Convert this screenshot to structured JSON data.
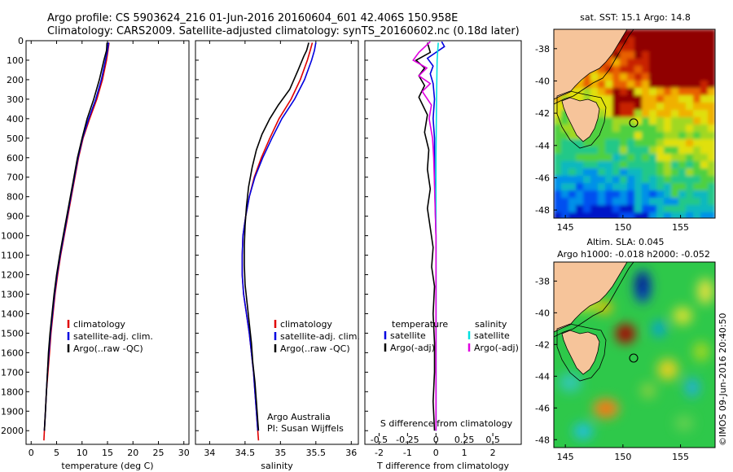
{
  "header": {
    "line1": "Argo profile: CS 5903624_216 01-Jun-2016 20160604_601 42.406S 150.958E",
    "line2": "Climatology: CARS2009. Satellite-adjusted climatology: synTS_20160602.nc (0.18d later)"
  },
  "colors": {
    "climatology": "#e00000",
    "satellite": "#0000e0",
    "argo": "#000000",
    "sat_salinity": "#00e0e0",
    "argo_salinity": "#e000e0",
    "land": "#f6c49a"
  },
  "chart_data": [
    {
      "type": "line",
      "name": "temperature-profile",
      "xlabel": "temperature (deg C)",
      "xlim": [
        -1,
        31
      ],
      "ylim": [
        0,
        2070
      ],
      "yinvert": true,
      "xticks": [
        "0",
        "5",
        "10",
        "15",
        "20",
        "25",
        "30"
      ],
      "yticks": [
        "0",
        "100",
        "200",
        "300",
        "400",
        "500",
        "600",
        "700",
        "800",
        "900",
        "1000",
        "1100",
        "1200",
        "1300",
        "1400",
        "1500",
        "1600",
        "1700",
        "1800",
        "1900",
        "2000"
      ],
      "series": [
        {
          "name": "climatology",
          "color": "#e00000",
          "points": [
            [
              15.3,
              10
            ],
            [
              15.1,
              50
            ],
            [
              14.8,
              100
            ],
            [
              14.0,
              200
            ],
            [
              12.9,
              300
            ],
            [
              11.5,
              400
            ],
            [
              10.2,
              500
            ],
            [
              9.3,
              600
            ],
            [
              8.6,
              700
            ],
            [
              7.9,
              800
            ],
            [
              7.2,
              900
            ],
            [
              6.5,
              1000
            ],
            [
              5.8,
              1100
            ],
            [
              5.2,
              1200
            ],
            [
              4.7,
              1300
            ],
            [
              4.3,
              1400
            ],
            [
              3.9,
              1500
            ],
            [
              3.6,
              1600
            ],
            [
              3.3,
              1700
            ],
            [
              3.0,
              1800
            ],
            [
              2.8,
              1900
            ],
            [
              2.6,
              2000
            ],
            [
              2.5,
              2050
            ]
          ]
        },
        {
          "name": "satellite-adj. clim.",
          "color": "#0000e0",
          "points": [
            [
              15.2,
              10
            ],
            [
              15.0,
              50
            ],
            [
              14.6,
              100
            ],
            [
              13.8,
              200
            ],
            [
              12.7,
              300
            ],
            [
              11.3,
              400
            ],
            [
              10.1,
              500
            ],
            [
              9.2,
              600
            ],
            [
              8.5,
              700
            ],
            [
              7.8,
              800
            ],
            [
              7.1,
              900
            ],
            [
              6.4,
              1000
            ],
            [
              5.7,
              1100
            ],
            [
              5.1,
              1200
            ],
            [
              4.6,
              1300
            ],
            [
              4.2,
              1400
            ],
            [
              3.8,
              1500
            ],
            [
              3.5,
              1600
            ],
            [
              3.2,
              1700
            ],
            [
              3.0,
              1800
            ],
            [
              2.8,
              1900
            ],
            [
              2.6,
              2000
            ]
          ]
        },
        {
          "name": "Argo(..raw -QC)",
          "color": "#000000",
          "points": [
            [
              14.9,
              10
            ],
            [
              14.8,
              50
            ],
            [
              14.3,
              100
            ],
            [
              13.4,
              200
            ],
            [
              12.3,
              300
            ],
            [
              11.0,
              400
            ],
            [
              10.0,
              500
            ],
            [
              9.1,
              600
            ],
            [
              8.4,
              700
            ],
            [
              7.7,
              800
            ],
            [
              7.0,
              900
            ],
            [
              6.3,
              1000
            ],
            [
              5.6,
              1100
            ],
            [
              5.0,
              1200
            ],
            [
              4.5,
              1300
            ],
            [
              4.1,
              1400
            ],
            [
              3.7,
              1500
            ],
            [
              3.4,
              1600
            ],
            [
              3.2,
              1700
            ],
            [
              3.0,
              1800
            ],
            [
              2.8,
              1900
            ],
            [
              2.6,
              2000
            ]
          ]
        }
      ],
      "legend": [
        "climatology",
        "satellite-adj. clim.",
        "Argo(..raw -QC)"
      ],
      "legend_position": "lower-right"
    },
    {
      "type": "line",
      "name": "salinity-profile",
      "xlabel": "salinity",
      "xlim": [
        33.8,
        36.1
      ],
      "ylim": [
        0,
        2070
      ],
      "yinvert": true,
      "xticks": [
        "34",
        "34.5",
        "35",
        "35.5",
        "36"
      ],
      "series": [
        {
          "name": "climatology",
          "color": "#e00000",
          "points": [
            [
              35.45,
              10
            ],
            [
              35.42,
              50
            ],
            [
              35.38,
              100
            ],
            [
              35.28,
              200
            ],
            [
              35.15,
              300
            ],
            [
              34.98,
              400
            ],
            [
              34.85,
              500
            ],
            [
              34.73,
              600
            ],
            [
              34.63,
              700
            ],
            [
              34.56,
              800
            ],
            [
              34.51,
              900
            ],
            [
              34.47,
              1000
            ],
            [
              34.46,
              1100
            ],
            [
              34.46,
              1200
            ],
            [
              34.48,
              1300
            ],
            [
              34.52,
              1400
            ],
            [
              34.56,
              1500
            ],
            [
              34.59,
              1600
            ],
            [
              34.62,
              1700
            ],
            [
              34.64,
              1800
            ],
            [
              34.66,
              1900
            ],
            [
              34.68,
              2000
            ],
            [
              34.69,
              2050
            ]
          ]
        },
        {
          "name": "satellite-adj. clim.",
          "color": "#0000e0",
          "points": [
            [
              35.5,
              10
            ],
            [
              35.48,
              50
            ],
            [
              35.44,
              100
            ],
            [
              35.34,
              200
            ],
            [
              35.2,
              300
            ],
            [
              35.02,
              400
            ],
            [
              34.88,
              500
            ],
            [
              34.75,
              600
            ],
            [
              34.64,
              700
            ],
            [
              34.56,
              800
            ],
            [
              34.51,
              900
            ],
            [
              34.47,
              1000
            ],
            [
              34.46,
              1100
            ],
            [
              34.46,
              1200
            ],
            [
              34.48,
              1300
            ],
            [
              34.52,
              1400
            ],
            [
              34.56,
              1500
            ],
            [
              34.59,
              1600
            ],
            [
              34.62,
              1700
            ],
            [
              34.64,
              1800
            ],
            [
              34.66,
              1900
            ],
            [
              34.68,
              2000
            ]
          ]
        },
        {
          "name": "Argo(..raw -QC)",
          "color": "#000000",
          "points": [
            [
              35.4,
              10
            ],
            [
              35.37,
              50
            ],
            [
              35.33,
              80
            ],
            [
              35.25,
              150
            ],
            [
              35.13,
              250
            ],
            [
              34.97,
              330
            ],
            [
              34.85,
              400
            ],
            [
              34.74,
              480
            ],
            [
              34.66,
              560
            ],
            [
              34.6,
              650
            ],
            [
              34.55,
              750
            ],
            [
              34.52,
              850
            ],
            [
              34.5,
              950
            ],
            [
              34.49,
              1050
            ],
            [
              34.49,
              1150
            ],
            [
              34.5,
              1250
            ],
            [
              34.53,
              1350
            ],
            [
              34.56,
              1450
            ],
            [
              34.59,
              1550
            ],
            [
              34.61,
              1650
            ],
            [
              34.64,
              1750
            ],
            [
              34.66,
              1850
            ],
            [
              34.68,
              1950
            ],
            [
              34.69,
              2000
            ]
          ]
        }
      ],
      "legend": [
        "climatology",
        "satellite-adj. clim.",
        "Argo(..raw -QC)"
      ],
      "legend_position": "lower-right",
      "annotation": [
        "Argo Australia",
        "PI: Susan Wijffels"
      ]
    },
    {
      "type": "line",
      "name": "difference-profile",
      "xlabel": "T difference from climatology",
      "x2label": "S difference from climatology",
      "xlim": [
        -2.5,
        3.0
      ],
      "x2lim": [
        -0.625,
        0.75
      ],
      "ylim": [
        0,
        2070
      ],
      "yinvert": true,
      "xticks": [
        "-2",
        "-1",
        "0",
        "1",
        "2"
      ],
      "x2ticks": [
        "-0.5",
        "-0.25",
        "0",
        "0.25",
        "0.5"
      ],
      "series": [
        {
          "name": "temperature satellite",
          "axis": "T",
          "color": "#0000e0",
          "points": [
            [
              0.2,
              5
            ],
            [
              0.3,
              30
            ],
            [
              0.0,
              60
            ],
            [
              -0.3,
              90
            ],
            [
              -0.1,
              130
            ],
            [
              -0.2,
              170
            ],
            [
              -0.1,
              220
            ],
            [
              -0.05,
              300
            ],
            [
              -0.1,
              400
            ],
            [
              -0.05,
              500
            ],
            [
              -0.05,
              700
            ],
            [
              0.0,
              1000
            ],
            [
              0.0,
              2000
            ]
          ]
        },
        {
          "name": "temperature Argo(-adj)",
          "axis": "T",
          "color": "#000000",
          "points": [
            [
              -0.3,
              10
            ],
            [
              -0.2,
              60
            ],
            [
              -0.7,
              100
            ],
            [
              -0.4,
              140
            ],
            [
              -0.6,
              180
            ],
            [
              -0.4,
              230
            ],
            [
              -0.6,
              290
            ],
            [
              -0.3,
              380
            ],
            [
              -0.4,
              470
            ],
            [
              -0.25,
              560
            ],
            [
              -0.3,
              660
            ],
            [
              -0.2,
              760
            ],
            [
              -0.3,
              860
            ],
            [
              -0.2,
              960
            ],
            [
              -0.1,
              1060
            ],
            [
              -0.15,
              1160
            ],
            [
              -0.05,
              1260
            ],
            [
              -0.1,
              1400
            ],
            [
              -0.05,
              1550
            ],
            [
              -0.05,
              1700
            ],
            [
              -0.1,
              1850
            ],
            [
              -0.05,
              2000
            ]
          ]
        },
        {
          "name": "salinity satellite",
          "axis": "S",
          "color": "#00e0e0",
          "points": [
            [
              0.02,
              10
            ],
            [
              0.01,
              100
            ],
            [
              0.005,
              300
            ],
            [
              0.0,
              600
            ],
            [
              0.0,
              1000
            ],
            [
              0.0,
              2000
            ]
          ]
        },
        {
          "name": "salinity Argo(-adj)",
          "axis": "S",
          "color": "#e000e0",
          "points": [
            [
              -0.05,
              5
            ],
            [
              -0.15,
              60
            ],
            [
              -0.2,
              100
            ],
            [
              -0.08,
              140
            ],
            [
              -0.15,
              180
            ],
            [
              -0.05,
              220
            ],
            [
              -0.12,
              260
            ],
            [
              -0.04,
              330
            ],
            [
              -0.06,
              400
            ],
            [
              -0.03,
              500
            ],
            [
              -0.02,
              600
            ],
            [
              -0.01,
              800
            ],
            [
              0.0,
              1000
            ],
            [
              0.0,
              2000
            ]
          ]
        }
      ],
      "legend": {
        "temperature_title": "temperature",
        "salinity_title": "salinity",
        "satellite": "satellite",
        "argo": "Argo(-adj)"
      }
    },
    {
      "type": "heatmap",
      "name": "sst-map",
      "title": "sat. SST: 15.1  Argo: 14.8",
      "xlim": [
        144,
        158
      ],
      "ylim": [
        -48.5,
        -36.8
      ],
      "xticks": [
        "145",
        "150",
        "155"
      ],
      "yticks": [
        "-38",
        "-40",
        "-42",
        "-44",
        "-46",
        "-48"
      ],
      "argo_position": [
        150.958,
        -42.406
      ]
    },
    {
      "type": "heatmap",
      "name": "sla-map",
      "title": "Altim. SLA: 0.045",
      "subtitle": "Argo h1000: -0.018 h2000: -0.052",
      "xlim": [
        144,
        158
      ],
      "ylim": [
        -48.5,
        -36.8
      ],
      "xticks": [
        "145",
        "150",
        "155"
      ],
      "yticks": [
        "-38",
        "-40",
        "-42",
        "-44",
        "-46",
        "-48"
      ],
      "argo_position": [
        150.958,
        -42.406
      ]
    }
  ],
  "footer": {
    "copyright": "©IMOS 09-Jun-2016 20:40:50"
  }
}
